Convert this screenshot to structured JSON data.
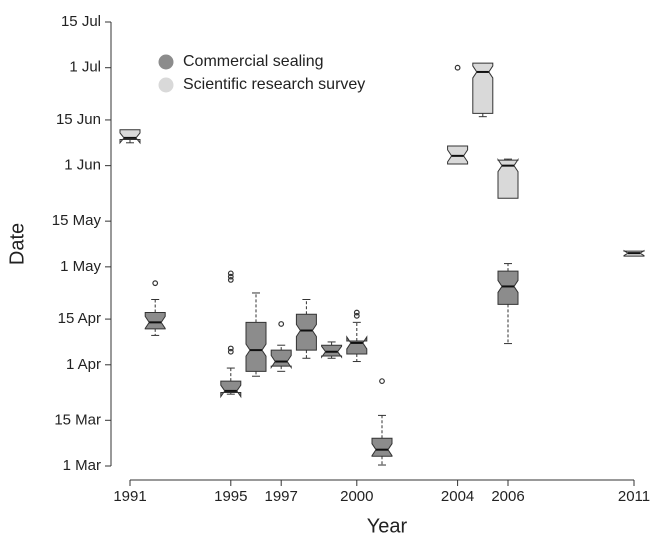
{
  "chart_data": {
    "type": "boxplot",
    "x_label": "Year",
    "y_label": "Date",
    "xlim": [
      1991,
      2011
    ],
    "xticks": [
      1991,
      1995,
      1997,
      2000,
      2004,
      2006,
      2011
    ],
    "ylim": [
      60,
      196
    ],
    "yticks": [
      {
        "value": 60,
        "label": "1 Mar"
      },
      {
        "value": 74,
        "label": "15 Mar"
      },
      {
        "value": 91,
        "label": "1 Apr"
      },
      {
        "value": 105,
        "label": "15 Apr"
      },
      {
        "value": 121,
        "label": "1 May"
      },
      {
        "value": 135,
        "label": "15 May"
      },
      {
        "value": 152,
        "label": "1 Jun"
      },
      {
        "value": 166,
        "label": "15 Jun"
      },
      {
        "value": 182,
        "label": "1 Jul"
      },
      {
        "value": 196,
        "label": "15 Jul"
      }
    ],
    "legend": "top-left",
    "series": [
      {
        "name": "Commercial sealing",
        "color": "#8c8c8c",
        "boxes": [
          {
            "x": 1992,
            "low": 100,
            "q1": 102,
            "median": 104,
            "q3": 107,
            "high": 111,
            "outliers": [
              116
            ]
          },
          {
            "x": 1995,
            "low": 82,
            "q1": 82.5,
            "median": 83,
            "q3": 86,
            "high": 90,
            "outliers": [
              95,
              96,
              117,
              118,
              119
            ]
          },
          {
            "x": 1996,
            "low": 87.5,
            "q1": 89,
            "median": 95.5,
            "q3": 104,
            "high": 113,
            "outliers": []
          },
          {
            "x": 1997,
            "low": 89,
            "q1": 90.6,
            "median": 92,
            "q3": 95.5,
            "high": 97,
            "outliers": [
              103.5
            ]
          },
          {
            "x": 1998,
            "low": 93,
            "q1": 95.5,
            "median": 101.5,
            "q3": 106.5,
            "high": 111,
            "outliers": []
          },
          {
            "x": 1999,
            "low": 93,
            "q1": 93.7,
            "median": 95,
            "q3": 97,
            "high": 98,
            "outliers": []
          },
          {
            "x": 2000,
            "low": 92,
            "q1": 94.3,
            "median": 97.7,
            "q3": 98.3,
            "high": 104,
            "outliers": [
              106,
              107
            ]
          },
          {
            "x": 2001,
            "low": 60.3,
            "q1": 63,
            "median": 65,
            "q3": 68.5,
            "high": 75.5,
            "outliers": [
              86
            ]
          },
          {
            "x": 2006,
            "low": 97.5,
            "q1": 109.5,
            "median": 115,
            "q3": 119.7,
            "high": 122,
            "outliers": []
          }
        ]
      },
      {
        "name": "Scientific research survey",
        "color": "#d9d9d9",
        "boxes": [
          {
            "x": 1991,
            "low": 159,
            "q1": 160,
            "median": 160.5,
            "q3": 163,
            "high": 163,
            "outliers": []
          },
          {
            "x": 2004,
            "low": 152.5,
            "q1": 152.5,
            "median": 155,
            "q3": 158,
            "high": 158,
            "outliers": [
              182
            ]
          },
          {
            "x": 2005,
            "low": 167,
            "q1": 168,
            "median": 180.7,
            "q3": 183.4,
            "high": 183.4,
            "outliers": []
          },
          {
            "x": 2006,
            "low": 142,
            "q1": 142,
            "median": 152,
            "q3": 153.7,
            "high": 154,
            "outliers": []
          },
          {
            "x": 2011,
            "low": 124.3,
            "q1": 124.3,
            "median": 125.2,
            "q3": 125.8,
            "high": 125.8,
            "outliers": []
          }
        ]
      }
    ]
  }
}
